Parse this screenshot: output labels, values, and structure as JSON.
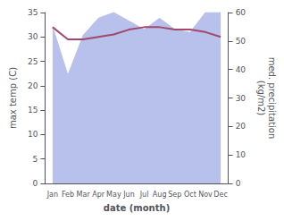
{
  "chart_data": {
    "type": "line",
    "categories": [
      "Jan",
      "Feb",
      "Mar",
      "Apr",
      "May",
      "Jun",
      "Jul",
      "Aug",
      "Sep",
      "Oct",
      "Nov",
      "Dec"
    ],
    "series": [
      {
        "type": "area",
        "axis": "y2",
        "color": "#b8c0ec",
        "values": [
          55,
          38,
          52,
          58,
          60,
          57,
          54,
          58,
          54,
          53,
          60,
          60
        ]
      },
      {
        "type": "line",
        "axis": "y",
        "color": "#a0496a",
        "values": [
          32.0,
          29.5,
          29.5,
          30.0,
          30.5,
          31.5,
          32.0,
          32.0,
          31.5,
          31.5,
          31.0,
          30.0
        ]
      }
    ],
    "xlabel": "date (month)",
    "ylabel": "max temp (C)",
    "y2label": "med. precipitation\n(kg/m2)",
    "ylim": [
      0,
      35
    ],
    "yticks": [
      0,
      5,
      10,
      15,
      20,
      25,
      30,
      35
    ],
    "y2lim": [
      0,
      60
    ],
    "y2ticks": [
      0,
      10,
      20,
      30,
      40,
      50,
      60
    ],
    "grid": false
  }
}
